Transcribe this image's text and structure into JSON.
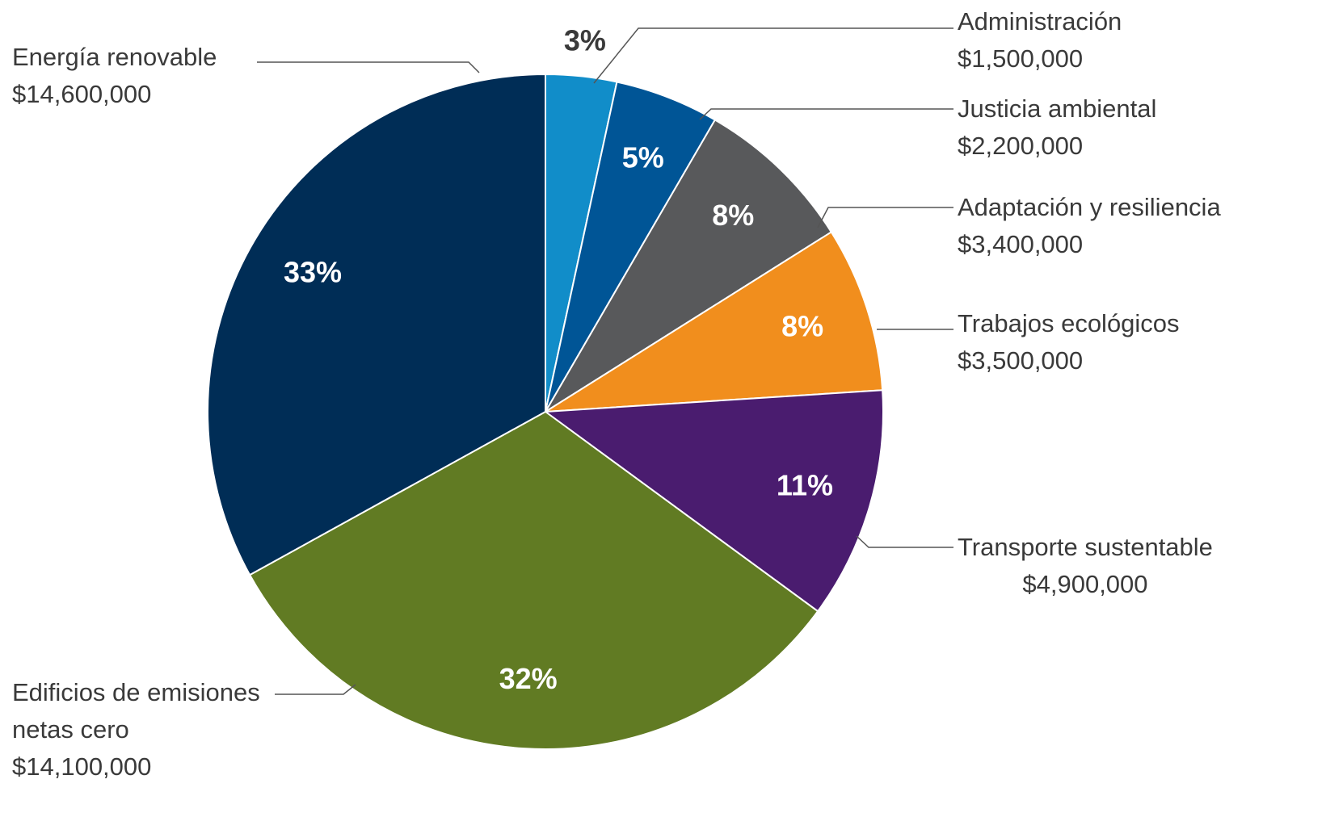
{
  "chart_data": {
    "type": "pie",
    "categories": [
      "Administración",
      "Justicia ambiental",
      "Adaptación y resiliencia",
      "Trabajos ecológicos",
      "Transporte sustentable",
      "Edificios de emisiones netas cero",
      "Energía renovable"
    ],
    "values": [
      1500000,
      2200000,
      3400000,
      3500000,
      4900000,
      14100000,
      14600000
    ],
    "value_labels": [
      "$1,500,000",
      "$2,200,000",
      "$3,400,000",
      "$3,500,000",
      "$4,900,000",
      "$14,100,000",
      "$14,600,000"
    ],
    "percent_labels": [
      "3%",
      "5%",
      "8%",
      "8%",
      "11%",
      "32%",
      "33%"
    ],
    "colors": [
      "#118dc9",
      "#005596",
      "#58595b",
      "#f18e1d",
      "#4a1c6f",
      "#617b23",
      "#002d56"
    ]
  }
}
